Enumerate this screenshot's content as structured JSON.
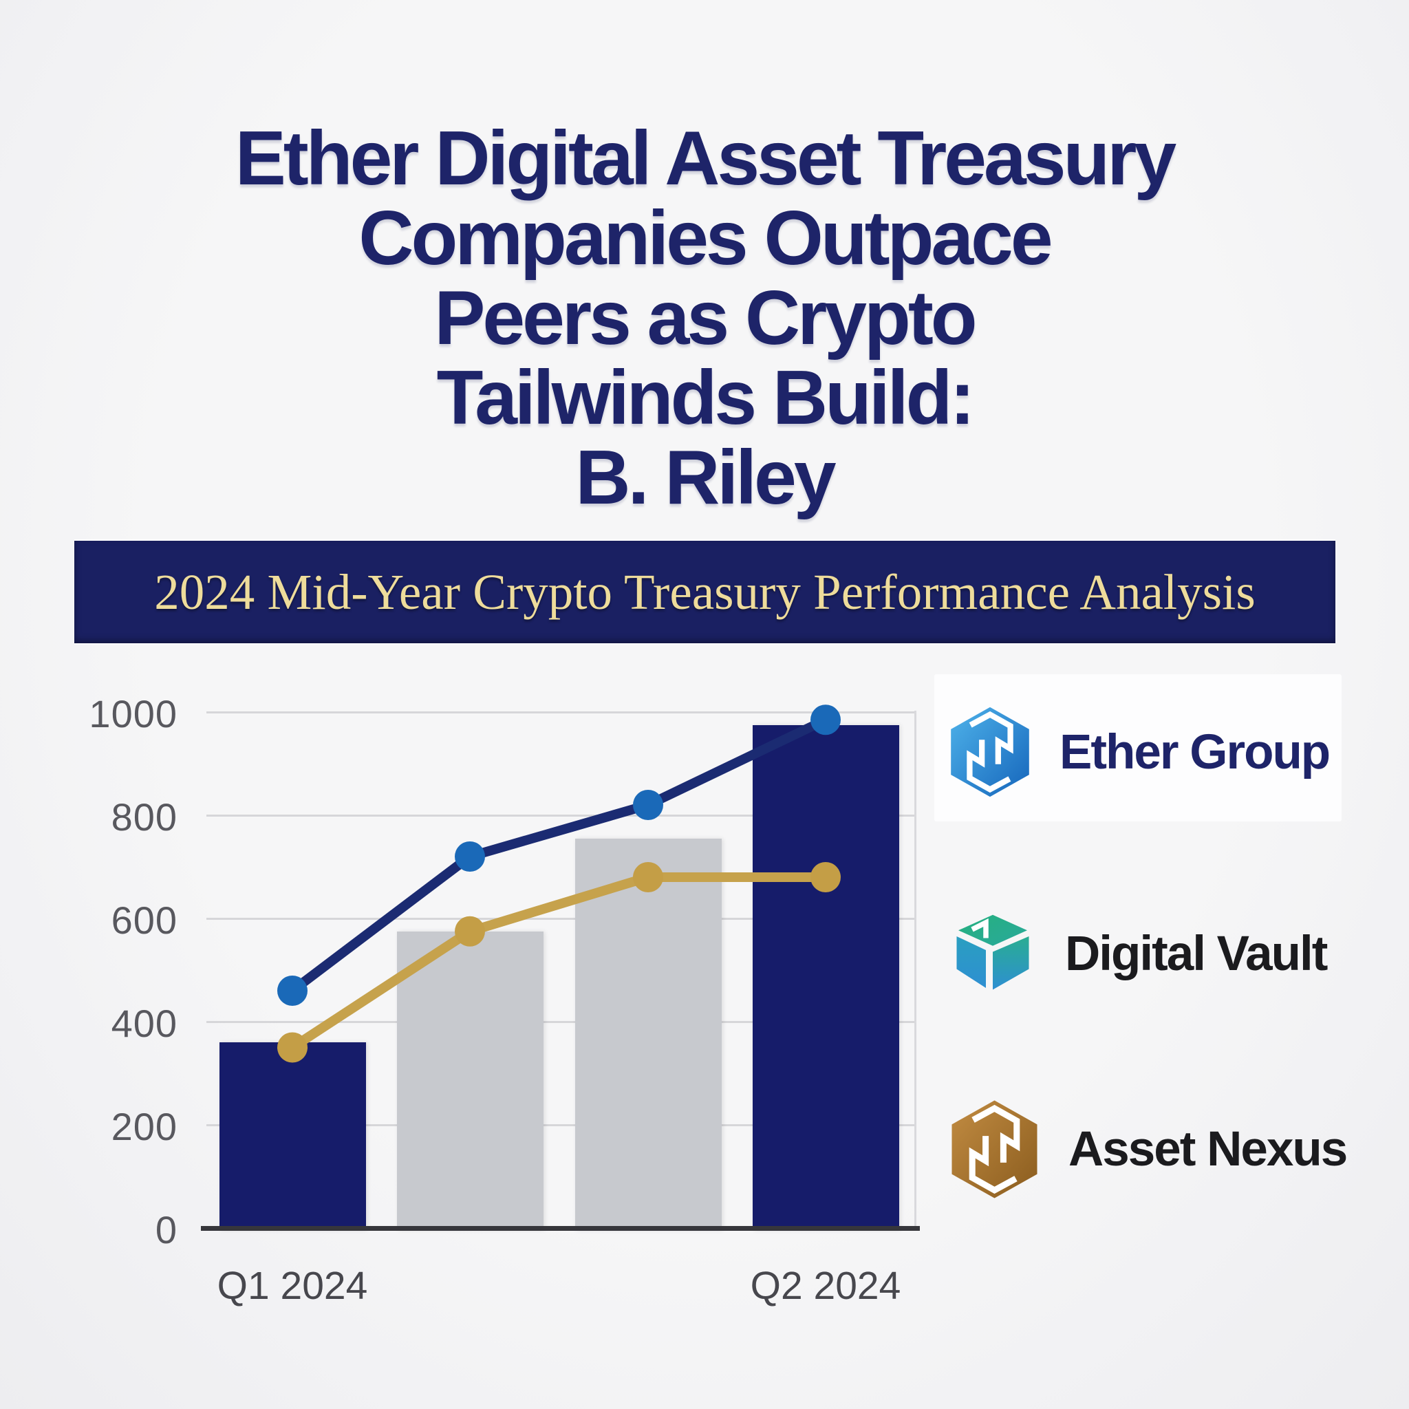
{
  "headline": {
    "lines": [
      "Ether Digital Asset Treasury",
      "Companies Outpace",
      "Peers as Crypto",
      "Tailwinds Build:",
      "B. Riley"
    ],
    "color": "#1e2469"
  },
  "banner": {
    "title": "2024 Mid-Year Crypto Treasury Performance Analysis",
    "bg_color": "#1a2062",
    "text_color": "#eedc9b"
  },
  "chart_data": {
    "type": "bar",
    "subtype": "combo-bar-plus-two-lines",
    "x_slots": 4,
    "x_labels": [
      {
        "text": "Q1 2024",
        "slot": 0
      },
      {
        "text": "Q2 2024",
        "slot": 3
      }
    ],
    "bars": {
      "values": [
        360,
        575,
        755,
        975
      ],
      "colors": [
        "#161c6a",
        "#c7c9ce",
        "#c7c9ce",
        "#161c6a"
      ]
    },
    "series": [
      {
        "name": "navy-line",
        "type": "line",
        "values": [
          460,
          720,
          820,
          985
        ],
        "line_color": "#1b2b72",
        "marker_color": "#1a69b8"
      },
      {
        "name": "gold-line",
        "type": "line",
        "values": [
          350,
          575,
          680,
          680
        ],
        "line_color": "#c6a24c",
        "marker_color": "#c49e46"
      }
    ],
    "ylim": [
      0,
      1000
    ],
    "yticks": [
      0,
      200,
      400,
      600,
      800,
      1000
    ],
    "grid": true,
    "axis_color": "#36363b",
    "gridline_color": "#d6d6d9",
    "tick_label_color": "#58585e",
    "legend_position": "right-outside"
  },
  "legend": {
    "items": [
      {
        "label": "Ether Group",
        "icon": "hexagon-spiral-blue-logo",
        "label_color": "#1e2469",
        "logo_colors": [
          "#4fb3ea",
          "#1565bb"
        ],
        "card_bg": "#fdfdfe"
      },
      {
        "label": "Digital Vault",
        "icon": "cube-vault-teal-logo",
        "label_color": "#1b1b1e",
        "logo_colors": [
          "#2bb487",
          "#2d8fd2"
        ]
      },
      {
        "label": "Asset Nexus",
        "icon": "hexagon-spiral-bronze-logo",
        "label_color": "#1b1b1e",
        "logo_colors": [
          "#c28c42",
          "#8a5c1e"
        ]
      }
    ]
  }
}
